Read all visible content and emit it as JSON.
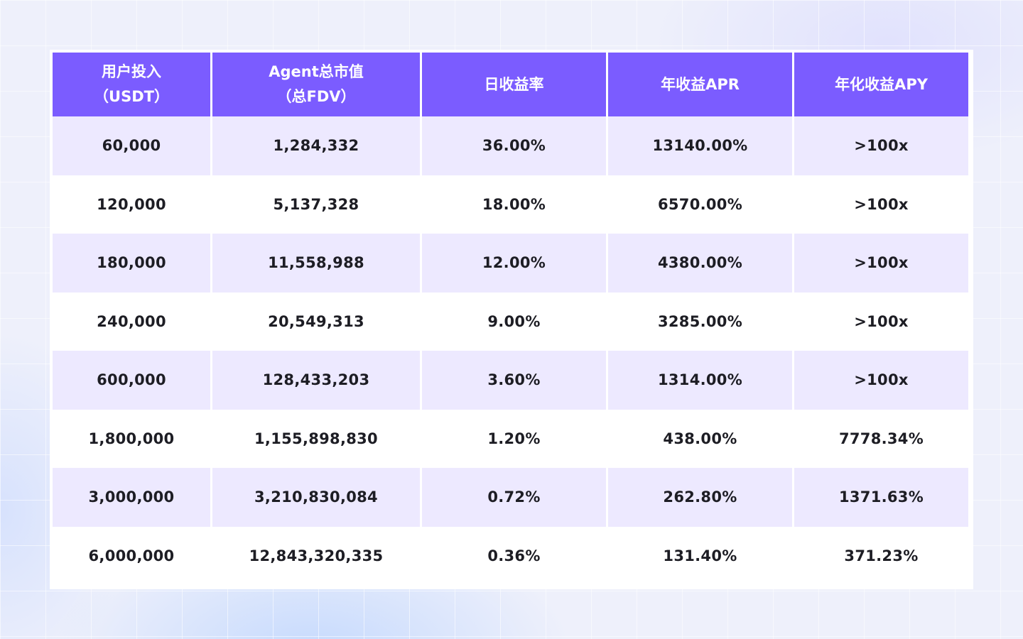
{
  "theme": {
    "header_bg": "#7b5cff",
    "row_alt_bg": "#ede9ff",
    "row_bg": "#ffffff",
    "text_color": "#1d1d24"
  },
  "table": {
    "headers": [
      {
        "line1": "用户投入",
        "line2": "（USDT）"
      },
      {
        "line1": "Agent总市值",
        "line2": "（总FDV）"
      },
      {
        "line1": "日收益率",
        "line2": ""
      },
      {
        "line1": "年收益APR",
        "line2": ""
      },
      {
        "line1": "年化收益APY",
        "line2": ""
      }
    ],
    "rows": [
      [
        "60,000",
        "1,284,332",
        "36.00%",
        "13140.00%",
        ">100x"
      ],
      [
        "120,000",
        "5,137,328",
        "18.00%",
        "6570.00%",
        ">100x"
      ],
      [
        "180,000",
        "11,558,988",
        "12.00%",
        "4380.00%",
        ">100x"
      ],
      [
        "240,000",
        "20,549,313",
        "9.00%",
        "3285.00%",
        ">100x"
      ],
      [
        "600,000",
        "128,433,203",
        "3.60%",
        "1314.00%",
        ">100x"
      ],
      [
        "1,800,000",
        "1,155,898,830",
        "1.20%",
        "438.00%",
        "7778.34%"
      ],
      [
        "3,000,000",
        "3,210,830,084",
        "0.72%",
        "262.80%",
        "1371.63%"
      ],
      [
        "6,000,000",
        "12,843,320,335",
        "0.36%",
        "131.40%",
        "371.23%"
      ]
    ]
  }
}
